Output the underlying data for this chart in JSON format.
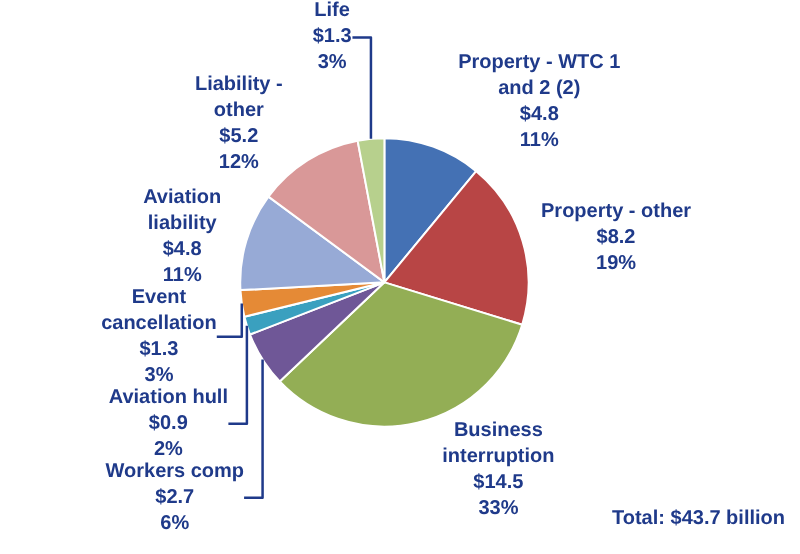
{
  "chart_data": {
    "type": "pie",
    "categories": [
      "Property - WTC 1 and 2 (2)",
      "Property - other",
      "Business interruption",
      "Workers comp",
      "Aviation hull",
      "Event cancellation",
      "Aviation liability",
      "Liability - other",
      "Life"
    ],
    "values": [
      4.8,
      8.2,
      14.5,
      2.7,
      0.9,
      1.3,
      4.8,
      5.2,
      1.3
    ],
    "value_labels": [
      "$4.8\n11%",
      "$8.2\n19%",
      "$14.5\n33%",
      "$2.7\n6%",
      "$0.9\n2%",
      "$1.3\n3%",
      "$4.8\n11%",
      "$5.2\n12%",
      "$1.3\n3%"
    ],
    "colors": [
      "#4471b4",
      "#b84545",
      "#93ae55",
      "#6f5797",
      "#3aa0bf",
      "#e58a36",
      "#97aad6",
      "#d99898",
      "#b7d08d"
    ],
    "annotations": [
      "Total: $43.7 billion"
    ]
  }
}
